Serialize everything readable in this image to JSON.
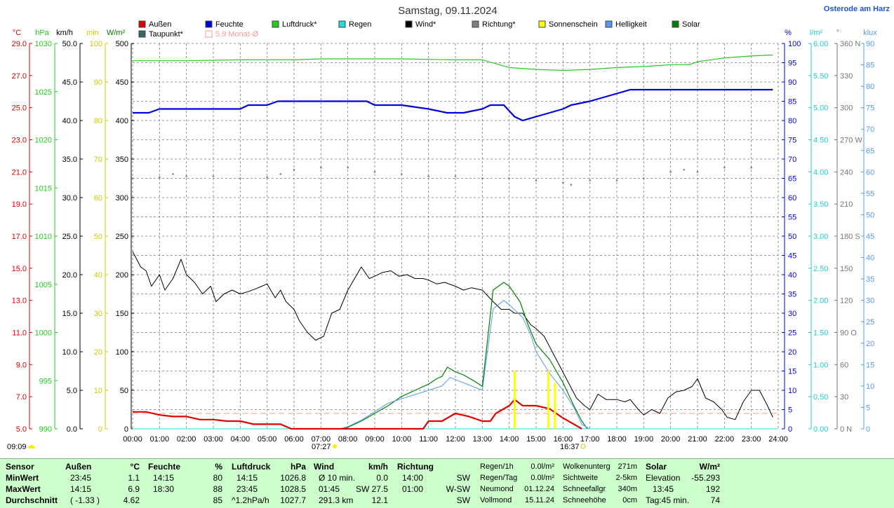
{
  "title": "Samstag, 09.11.2024",
  "location": "Osterode am Harz",
  "colors": {
    "aussen": "#e00000",
    "feuchte": "#0000dd",
    "luftdruck": "#22cc22",
    "regen": "#22dddd",
    "wind": "#000000",
    "richtung": "#808080",
    "sonnenschein": "#ffff00",
    "helligkeit": "#5599ee",
    "solar": "#008000",
    "taupunkt": "#336666",
    "monat": "#ff9999",
    "grid": "#777777"
  },
  "legend": [
    {
      "label": "Außen",
      "color": "#e00000"
    },
    {
      "label": "Feuchte",
      "color": "#0000dd"
    },
    {
      "label": "Luftdruck*",
      "color": "#22cc22"
    },
    {
      "label": "Regen",
      "color": "#22dddd"
    },
    {
      "label": "Wind*",
      "color": "#000000"
    },
    {
      "label": "Richtung*",
      "color": "#808080"
    },
    {
      "label": "Sonnenschein",
      "color": "#ffff00"
    },
    {
      "label": "Helligkeit",
      "color": "#5599ee"
    },
    {
      "label": "Solar",
      "color": "#008000"
    },
    {
      "label": "Taupunkt*",
      "color": "#336666"
    },
    {
      "label": "5.9 Monat-Ø",
      "color": "#ff9999"
    }
  ],
  "axes_units": {
    "left": [
      "°C",
      "hPa",
      "km/h",
      "min",
      "W/m²"
    ],
    "right": [
      "%",
      "l/m²",
      "°",
      "klux"
    ]
  },
  "axis_ticks": {
    "temp": [
      "29.0",
      "27.0",
      "25.0",
      "23.0",
      "21.0",
      "19.0",
      "17.0",
      "15.0",
      "13.0",
      "11.0",
      "9.0",
      "7.0",
      "5.0"
    ],
    "hpa": [
      "1030",
      "1025",
      "1020",
      "1015",
      "1010",
      "1005",
      "1000",
      "995",
      "990"
    ],
    "kmh": [
      "50.0",
      "45.0",
      "40.0",
      "35.0",
      "30.0",
      "25.0",
      "20.0",
      "15.0",
      "10.0",
      "5.0",
      "0.0"
    ],
    "min": [
      "100",
      "90",
      "80",
      "70",
      "60",
      "50",
      "40",
      "30",
      "20",
      "10",
      "0"
    ],
    "wm2": [
      "500",
      "450",
      "400",
      "350",
      "300",
      "250",
      "200",
      "150",
      "100",
      "50",
      "0"
    ],
    "pct": [
      "100",
      "95",
      "90",
      "85",
      "80",
      "75",
      "70",
      "65",
      "60",
      "55",
      "50",
      "45",
      "40",
      "35",
      "30",
      "25",
      "20",
      "15",
      "10",
      "5",
      "0"
    ],
    "lm2": [
      "6.00",
      "5.50",
      "5.00",
      "4.50",
      "4.00",
      "3.50",
      "3.00",
      "2.50",
      "2.00",
      "1.50",
      "1.00",
      "0.50",
      "0.00"
    ],
    "deg": [
      "360 N",
      "330",
      "300",
      "270 W",
      "240",
      "210",
      "180 S",
      "150",
      "120",
      "90 O",
      "60",
      "30",
      "0 N"
    ],
    "klux": [
      "90",
      "85",
      "80",
      "75",
      "70",
      "65",
      "60",
      "55",
      "50",
      "45",
      "40",
      "35",
      "30",
      "25",
      "20",
      "15",
      "10",
      "5",
      "0"
    ],
    "time": [
      "00:00",
      "01:00",
      "02:00",
      "03:00",
      "04:00",
      "05:00",
      "06:00",
      "07:00",
      "08:00",
      "09:00",
      "10:00",
      "11:00",
      "12:00",
      "13:00",
      "14:00",
      "15:00",
      "16:00",
      "17:00",
      "18:00",
      "19:00",
      "20:00",
      "21:00",
      "22:00",
      "23:00",
      "24:00"
    ]
  },
  "markers": {
    "sunrise": "07:27",
    "sunset": "16:37",
    "left_time": "09:09"
  },
  "chart_data": {
    "type": "line",
    "title": "Samstag, 09.11.2024",
    "x_unit": "hours",
    "xlim": [
      0,
      24
    ],
    "series": [
      {
        "name": "Außen",
        "unit": "°C",
        "ylim": [
          5,
          30
        ],
        "x": [
          0,
          0.5,
          1,
          1.5,
          2,
          2.5,
          3,
          3.5,
          4,
          4.5,
          5,
          5.5,
          5.9,
          6,
          6.5,
          7,
          7.5,
          8,
          8.5,
          9,
          9.5,
          10,
          10.5,
          10.8,
          11,
          11.5,
          12,
          12.5,
          13,
          13.3,
          13.5,
          14,
          14.2,
          14.5,
          15,
          15.5,
          16,
          16.5,
          16.7
        ],
        "y": [
          6.1,
          6.1,
          5.9,
          5.8,
          5.8,
          5.6,
          5.6,
          5.5,
          5.5,
          5.3,
          5.3,
          5.3,
          5.0,
          5.0,
          5.0,
          5.0,
          5.0,
          5.0,
          5.0,
          5.0,
          5.0,
          5.0,
          5.0,
          5.0,
          5.5,
          5.5,
          6.0,
          5.8,
          5.5,
          5.5,
          6.0,
          6.5,
          6.9,
          6.5,
          6.5,
          6.3,
          5.7,
          5.2,
          5.0
        ]
      },
      {
        "name": "Feuchte",
        "unit": "%",
        "ylim": [
          0,
          100
        ],
        "x": [
          0,
          0.6,
          1,
          2,
          3,
          4,
          4.3,
          5,
          5.4,
          6,
          7,
          8,
          8.7,
          9,
          10,
          11,
          11.7,
          12.3,
          13,
          13.3,
          13.8,
          14.2,
          14.5,
          15,
          15.5,
          16,
          16.3,
          17,
          17.5,
          18,
          18.5,
          20,
          21,
          22,
          23,
          23.8
        ],
        "y": [
          82,
          82,
          83,
          83,
          83,
          83,
          84,
          84,
          85,
          85,
          85,
          85,
          85,
          84,
          84,
          83,
          82,
          82,
          83,
          84,
          84,
          81,
          80,
          81,
          82,
          83,
          84,
          85,
          86,
          87,
          88,
          88,
          88,
          88,
          88,
          88
        ]
      },
      {
        "name": "Luftdruck*",
        "unit": "hPa",
        "ylim": [
          990,
          1030
        ],
        "x": [
          0,
          2,
          4,
          6,
          7,
          8,
          10,
          12,
          13,
          13.5,
          14,
          15,
          16,
          17,
          18,
          19,
          20,
          20.7,
          21,
          22,
          23,
          23.8
        ],
        "y": [
          1028.2,
          1028.2,
          1028.3,
          1028.3,
          1028.4,
          1028.4,
          1028.4,
          1028.3,
          1028.3,
          1027.9,
          1027.5,
          1027.3,
          1027.2,
          1027.3,
          1027.5,
          1027.6,
          1027.8,
          1027.8,
          1028.1,
          1028.5,
          1028.7,
          1028.8
        ]
      },
      {
        "name": "Wind*",
        "unit": "km/h",
        "ylim": [
          0,
          50
        ],
        "x": [
          0,
          0.3,
          0.5,
          0.7,
          1,
          1.2,
          1.5,
          1.8,
          2,
          2.3,
          2.6,
          2.9,
          3.1,
          3.4,
          3.7,
          4,
          4.3,
          4.6,
          4.8,
          5,
          5.3,
          5.5,
          5.7,
          6,
          6.2,
          6.5,
          6.8,
          7.1,
          7.4,
          7.7,
          8,
          8.3,
          8.5,
          8.8,
          9,
          9.3,
          9.6,
          9.9,
          10.2,
          10.5,
          10.8,
          11,
          11.3,
          11.6,
          12,
          12.3,
          12.6,
          13,
          13.4,
          13.7,
          14,
          14.2,
          14.5,
          14.8,
          15,
          15.3,
          15.6,
          15.9,
          16.2,
          16.5,
          16.8,
          17,
          17.3,
          17.6,
          18,
          18.3,
          18.5,
          18.8,
          19,
          19.3,
          19.6,
          19.9,
          20.2,
          20.5,
          20.8,
          21,
          21.3,
          21.6,
          21.9,
          22.1,
          22.4,
          22.7,
          23,
          23.3,
          23.6,
          23.8
        ],
        "y": [
          23,
          21,
          20.5,
          18.5,
          20,
          18,
          19.5,
          22,
          20,
          19,
          17.5,
          18.5,
          16.5,
          17.5,
          18,
          17.5,
          17.8,
          18.2,
          18.5,
          18.8,
          17,
          18,
          16.5,
          15.5,
          14,
          12.5,
          11.5,
          12,
          15,
          15.5,
          18,
          19.8,
          21,
          19.5,
          19.8,
          20.3,
          20.5,
          19.8,
          20,
          19.5,
          19.5,
          19.3,
          18.8,
          19,
          18.5,
          18,
          18.3,
          18,
          16.5,
          15.5,
          15.5,
          15,
          15,
          13.5,
          13,
          12,
          10,
          8,
          6,
          4,
          3,
          2.5,
          4.5,
          3.8,
          3.8,
          3.5,
          3.8,
          2.5,
          1.8,
          2.5,
          2,
          4,
          4.8,
          5,
          5.5,
          6.5,
          4,
          3.5,
          2.5,
          1.5,
          1.2,
          3.5,
          5,
          5,
          3,
          1.5
        ]
      },
      {
        "name": "Richtung*",
        "unit": "°",
        "ylim": [
          0,
          360
        ],
        "x": [
          0,
          1,
          1.5,
          2,
          3,
          4,
          5,
          5.5,
          6,
          7,
          8,
          9,
          10,
          11,
          12,
          13,
          14,
          15,
          16,
          16.3,
          17,
          18,
          19,
          20,
          20.5,
          21,
          22,
          23
        ],
        "y": [
          234,
          235,
          238,
          236,
          236,
          234,
          235,
          238,
          242,
          244,
          244,
          240,
          238,
          236,
          236,
          234,
          234,
          232,
          230,
          228,
          232,
          232,
          234,
          240,
          242,
          240,
          244,
          244
        ]
      },
      {
        "name": "Solar",
        "unit": "W/m²",
        "ylim": [
          0,
          500
        ],
        "x": [
          7.7,
          8,
          8.5,
          9,
          9.5,
          10,
          10.5,
          11,
          11.3,
          11.5,
          11.7,
          12,
          12.3,
          12.7,
          13,
          13.4,
          13.8,
          14,
          14.4,
          14.7,
          15,
          15.5,
          16,
          16.4,
          16.7,
          16.9
        ],
        "y": [
          0,
          2,
          10,
          20,
          30,
          42,
          50,
          58,
          65,
          68,
          80,
          74,
          70,
          62,
          55,
          180,
          190,
          185,
          165,
          135,
          110,
          90,
          60,
          30,
          10,
          0
        ]
      },
      {
        "name": "Helligkeit",
        "unit": "klux",
        "ylim": [
          0,
          90
        ],
        "x": [
          7.7,
          8,
          8.5,
          9,
          9.5,
          10,
          10.5,
          11,
          11.5,
          11.8,
          12.2,
          12.6,
          13,
          13.4,
          13.8,
          14,
          14.5,
          14.8,
          15,
          15.5,
          16,
          16.4,
          16.7,
          17
        ],
        "y": [
          0,
          0.5,
          2,
          4,
          6,
          7,
          8,
          9,
          10,
          12,
          11,
          10,
          9,
          28,
          30,
          29,
          26,
          22,
          18,
          13,
          9,
          5,
          1,
          0
        ]
      },
      {
        "name": "Regen",
        "unit": "l/m²",
        "ylim": [
          0,
          6
        ],
        "x": [
          0,
          24
        ],
        "y": [
          0,
          0
        ]
      },
      {
        "name": "5.9 Monat-Ø",
        "unit": "°C",
        "ylim": [
          5,
          30
        ],
        "x": [
          0,
          24
        ],
        "y": [
          6.0,
          6.0
        ]
      }
    ],
    "sonnenschein_bars": {
      "unit": "min",
      "x": [
        14.2,
        15.45,
        15.7
      ],
      "values": [
        15,
        15,
        12
      ]
    },
    "grid": true
  },
  "stats": {
    "sensor": {
      "header": "Sensor",
      "rows": [
        "MinWert",
        "MaxWert",
        "Durchschnitt"
      ]
    },
    "aussen": {
      "header": "Außen",
      "unit": "°C",
      "times": [
        "23:45",
        "14:15",
        "( -1.33 )"
      ],
      "values": [
        "1.1",
        "6.9",
        "4.62"
      ]
    },
    "feuchte": {
      "header": "Feuchte",
      "unit": "%",
      "times": [
        "14:15",
        "18:30",
        ""
      ],
      "values": [
        "80",
        "88",
        "85"
      ]
    },
    "luftdruck": {
      "header": "Luftdruck",
      "unit": "hPa",
      "times": [
        "14:15",
        "23:45",
        "^1.2hPa/h"
      ],
      "values": [
        "1026.8",
        "1028.5",
        "1027.7"
      ]
    },
    "wind": {
      "header": "Wind",
      "unit": "km/h",
      "times": [
        "Ø 10 min.",
        "01:45",
        "291.3 km"
      ],
      "values": [
        "0.0",
        "SW 27.5",
        "12.1"
      ]
    },
    "richtung": {
      "header": "Richtung",
      "times": [
        "14:00",
        "01:00",
        ""
      ],
      "values": [
        "SW",
        "W-SW",
        "SW"
      ]
    },
    "regen": {
      "labels": [
        "Regen/1h",
        "Regen/Tag",
        "Neumond",
        "Vollmond"
      ],
      "values": [
        "0.0l/m²",
        "0.0l/m²",
        "01.12.24",
        "15.11.24"
      ]
    },
    "wolken": {
      "labels": [
        "Wolkenunterg",
        "Sichtweite",
        "Schneefallgr",
        "Schneehöhe"
      ],
      "values": [
        "271m",
        "2-5km",
        "340m",
        "0cm"
      ]
    },
    "solar": {
      "header": "Solar",
      "unit": "W/m²",
      "labels": [
        "Elevation",
        "13:45",
        "Tag:45 min."
      ],
      "values": [
        "-55.293",
        "192",
        "74"
      ]
    }
  }
}
